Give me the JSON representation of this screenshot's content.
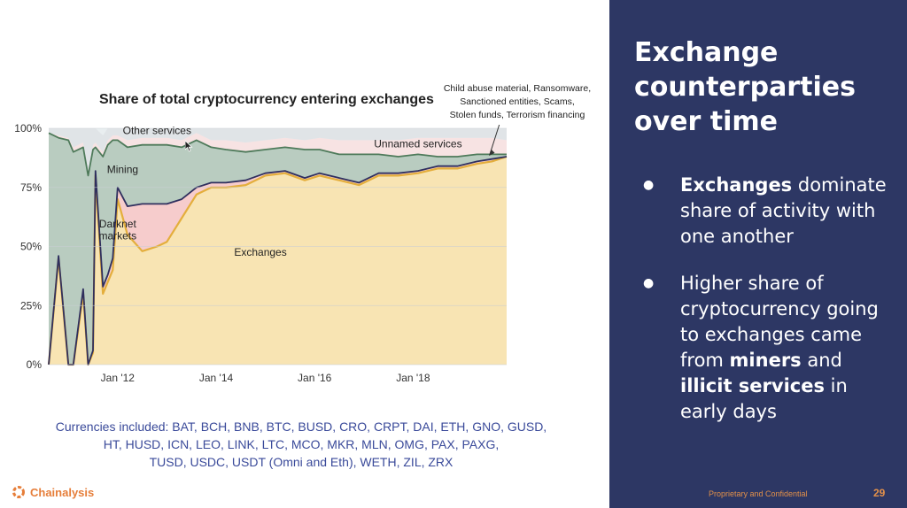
{
  "chart_data": {
    "type": "area",
    "stacked": true,
    "percent": true,
    "title": "Share of total cryptocurrency entering exchanges",
    "x_range": [
      2010.6,
      2019.9
    ],
    "x_ticks": [
      {
        "value": 2012,
        "label": "Jan '12"
      },
      {
        "value": 2014,
        "label": "Jan '14"
      },
      {
        "value": 2016,
        "label": "Jan '16"
      },
      {
        "value": 2018,
        "label": "Jan '18"
      }
    ],
    "y_range": [
      0,
      100
    ],
    "y_ticks": [
      "0%",
      "25%",
      "50%",
      "75%",
      "100%"
    ],
    "grid": true,
    "series": [
      {
        "name": "Exchanges",
        "color": "#f8e4b3",
        "x": [
          2010.6,
          2010.8,
          2011.0,
          2011.1,
          2011.3,
          2011.4,
          2011.5,
          2011.55,
          2011.7,
          2011.8,
          2011.9,
          2012.0,
          2012.2,
          2012.5,
          2012.8,
          2013.0,
          2013.3,
          2013.6,
          2013.9,
          2014.2,
          2014.6,
          2015.0,
          2015.4,
          2015.8,
          2016.1,
          2016.5,
          2016.9,
          2017.3,
          2017.7,
          2018.1,
          2018.5,
          2018.9,
          2019.3,
          2019.6,
          2019.9
        ],
        "values": [
          0,
          45,
          0,
          0,
          30,
          0,
          5,
          80,
          30,
          35,
          40,
          70,
          55,
          48,
          50,
          52,
          62,
          72,
          75,
          75,
          76,
          80,
          81,
          78,
          80,
          78,
          76,
          80,
          80,
          81,
          83,
          83,
          85,
          86,
          88
        ]
      },
      {
        "name": "Darknet markets",
        "color": "#f6cccc",
        "x": [
          2010.6,
          2010.8,
          2011.0,
          2011.1,
          2011.3,
          2011.4,
          2011.5,
          2011.55,
          2011.7,
          2011.8,
          2011.9,
          2012.0,
          2012.2,
          2012.5,
          2012.8,
          2013.0,
          2013.3,
          2013.6,
          2013.9,
          2014.2,
          2014.6,
          2015.0,
          2015.4,
          2015.8,
          2016.1,
          2016.5,
          2016.9,
          2017.3,
          2017.7,
          2018.1,
          2018.5,
          2018.9,
          2019.3,
          2019.6,
          2019.9
        ],
        "values": [
          0,
          1,
          0,
          0,
          2,
          0,
          1,
          2,
          3,
          3,
          5,
          5,
          12,
          20,
          18,
          16,
          8,
          3,
          2,
          2,
          2,
          1,
          1,
          1,
          1,
          1,
          1,
          1,
          1,
          1,
          1,
          1,
          1,
          1,
          0
        ]
      },
      {
        "name": "Mining",
        "color": "#b9ccc0",
        "x": [
          2010.6,
          2010.8,
          2011.0,
          2011.1,
          2011.3,
          2011.4,
          2011.5,
          2011.55,
          2011.7,
          2011.8,
          2011.9,
          2012.0,
          2012.2,
          2012.5,
          2012.8,
          2013.0,
          2013.3,
          2013.6,
          2013.9,
          2014.2,
          2014.6,
          2015.0,
          2015.4,
          2015.8,
          2016.1,
          2016.5,
          2016.9,
          2017.3,
          2017.7,
          2018.1,
          2018.5,
          2018.9,
          2019.3,
          2019.6,
          2019.9
        ],
        "values": [
          98,
          50,
          95,
          90,
          60,
          80,
          85,
          10,
          55,
          55,
          50,
          20,
          25,
          25,
          25,
          25,
          22,
          20,
          15,
          14,
          12,
          10,
          10,
          12,
          10,
          10,
          12,
          8,
          7,
          7,
          4,
          4,
          3,
          2,
          1
        ]
      },
      {
        "name": "Unnamed services",
        "color": "#f7e3e3",
        "x": [
          2010.6,
          2010.8,
          2011.0,
          2011.1,
          2011.3,
          2011.4,
          2011.5,
          2011.55,
          2011.7,
          2011.8,
          2011.9,
          2012.0,
          2012.2,
          2012.5,
          2012.8,
          2013.0,
          2013.3,
          2013.6,
          2013.9,
          2014.2,
          2014.6,
          2015.0,
          2015.4,
          2015.8,
          2016.1,
          2016.5,
          2016.9,
          2017.3,
          2017.7,
          2018.1,
          2018.5,
          2018.9,
          2019.3,
          2019.6,
          2019.9
        ],
        "values": [
          0,
          1,
          1,
          2,
          2,
          2,
          2,
          2,
          2,
          2,
          2,
          2,
          3,
          3,
          3,
          3,
          3,
          3,
          3,
          4,
          4,
          4,
          4,
          4,
          5,
          6,
          6,
          6,
          7,
          7,
          8,
          8,
          7,
          7,
          6
        ]
      },
      {
        "name": "Other services",
        "color": "#e0e4e7",
        "x": [
          2010.6,
          2010.8,
          2011.0,
          2011.1,
          2011.3,
          2011.4,
          2011.5,
          2011.55,
          2011.7,
          2011.8,
          2011.9,
          2012.0,
          2012.2,
          2012.5,
          2012.8,
          2013.0,
          2013.3,
          2013.6,
          2013.9,
          2014.2,
          2014.6,
          2015.0,
          2015.4,
          2015.8,
          2016.1,
          2016.5,
          2016.9,
          2017.3,
          2017.7,
          2018.1,
          2018.5,
          2018.9,
          2019.3,
          2019.6,
          2019.9
        ],
        "values": [
          2,
          3,
          4,
          8,
          6,
          18,
          7,
          6,
          7,
          5,
          3,
          3,
          5,
          4,
          4,
          4,
          5,
          2,
          5,
          5,
          6,
          5,
          4,
          5,
          4,
          5,
          5,
          5,
          5,
          4,
          4,
          4,
          4,
          4,
          5
        ]
      }
    ],
    "labels": [
      {
        "text": "Other services",
        "x": 2012.8,
        "y": 97.5
      },
      {
        "text": "Unnamed services",
        "x": 2018.1,
        "y": 92
      },
      {
        "text": "Mining",
        "x": 2012.1,
        "y": 81
      },
      {
        "text": "Darknet",
        "x": 2012.0,
        "y": 58
      },
      {
        "text": "markets",
        "x": 2012.0,
        "y": 53
      },
      {
        "text": "Exchanges",
        "x": 2014.9,
        "y": 46
      }
    ],
    "annotation": {
      "lines": [
        "Child abuse material, Ransomware,",
        "Sanctioned entities, Scams,",
        "Stolen funds, Terrorism financing"
      ],
      "arrow_from": [
        2019.75,
        101.5
      ],
      "arrow_to": [
        2019.55,
        88.5
      ]
    }
  },
  "slide": {
    "title_lines": [
      "Exchange",
      "counterparties",
      "over time"
    ],
    "bullet1": {
      "bold": "Exchanges",
      "rest": " dominate share of activity with one another"
    },
    "bullet2": {
      "lead": "Higher share of cryptocurrency going to exchanges came from ",
      "miners": "miners",
      "and": " and ",
      "illicit": "illicit services",
      "tail": " in early days"
    },
    "currencies_lines": [
      "Currencies included: BAT, BCH, BNB, BTC, BUSD, CRO, CRPT, DAI, ETH, GNO, GUSD,",
      "HT, HUSD, ICN, LEO, LINK, LTC, MCO, MKR, MLN, OMG, PAX, PAXG,",
      "TUSD, USDC, USDT (Omni and Eth), WETH, ZIL, ZRX"
    ],
    "logo_name": "Chainalysis",
    "footer_confidential": "Proprietary and Confidential",
    "page_number": "29"
  },
  "colors": {
    "panel": "#2d3764",
    "accent": "#e67e3a",
    "currency_text": "#3a4a9a",
    "top_line": "#4e7a5a",
    "exch_line": "#2f2f5e",
    "exch_edge": "#e4ae3c"
  }
}
